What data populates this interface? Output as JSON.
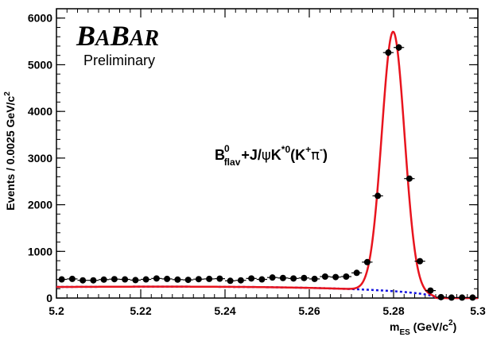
{
  "chart_data": {
    "type": "scatter",
    "logo": "BABAR",
    "status_label": "Preliminary",
    "annotation": {
      "base": "B",
      "sup1": "0",
      "sub1": "flav",
      "mid": "+J/",
      "psi": "ψ",
      "k": "K",
      "sup2": "*0",
      "open": "(K",
      "sup3": "+",
      "pi": "π",
      "sup4": "-",
      "close": ")"
    },
    "xlabel": {
      "main": "m",
      "sub": "ES",
      "unit": " (GeV/c",
      "sup": "2",
      "end": ")"
    },
    "ylabel": {
      "main": "Events / 0.0025 GeV/c",
      "sup": "2"
    },
    "xlim": [
      5.2,
      5.3
    ],
    "ylim": [
      0,
      6200
    ],
    "x_ticks": [
      {
        "v": 5.2,
        "label": "5.2"
      },
      {
        "v": 5.22,
        "label": "5.22"
      },
      {
        "v": 5.24,
        "label": "5.24"
      },
      {
        "v": 5.26,
        "label": "5.26"
      },
      {
        "v": 5.28,
        "label": "5.28"
      },
      {
        "v": 5.3,
        "label": "5.3"
      }
    ],
    "y_ticks": [
      {
        "v": 0,
        "label": "0"
      },
      {
        "v": 1000,
        "label": "1000"
      },
      {
        "v": 2000,
        "label": "2000"
      },
      {
        "v": 3000,
        "label": "3000"
      },
      {
        "v": 4000,
        "label": "4000"
      },
      {
        "v": 5000,
        "label": "5000"
      },
      {
        "v": 6000,
        "label": "6000"
      }
    ],
    "x_minor_step": 0.0025,
    "y_minor_step": 200,
    "bin_half_width": 0.00125,
    "points": [
      {
        "x": 5.20125,
        "y": 400,
        "err": 20
      },
      {
        "x": 5.20375,
        "y": 410,
        "err": 20
      },
      {
        "x": 5.20625,
        "y": 380,
        "err": 20
      },
      {
        "x": 5.20875,
        "y": 380,
        "err": 20
      },
      {
        "x": 5.21125,
        "y": 395,
        "err": 20
      },
      {
        "x": 5.21375,
        "y": 405,
        "err": 20
      },
      {
        "x": 5.21625,
        "y": 400,
        "err": 20
      },
      {
        "x": 5.21875,
        "y": 385,
        "err": 20
      },
      {
        "x": 5.22125,
        "y": 400,
        "err": 20
      },
      {
        "x": 5.22375,
        "y": 420,
        "err": 20
      },
      {
        "x": 5.22625,
        "y": 410,
        "err": 20
      },
      {
        "x": 5.22875,
        "y": 395,
        "err": 20
      },
      {
        "x": 5.23125,
        "y": 390,
        "err": 20
      },
      {
        "x": 5.23375,
        "y": 405,
        "err": 20
      },
      {
        "x": 5.23625,
        "y": 410,
        "err": 20
      },
      {
        "x": 5.23875,
        "y": 415,
        "err": 20
      },
      {
        "x": 5.24125,
        "y": 370,
        "err": 20
      },
      {
        "x": 5.24375,
        "y": 380,
        "err": 20
      },
      {
        "x": 5.24625,
        "y": 420,
        "err": 20
      },
      {
        "x": 5.24875,
        "y": 400,
        "err": 20
      },
      {
        "x": 5.25125,
        "y": 440,
        "err": 20
      },
      {
        "x": 5.25375,
        "y": 430,
        "err": 20
      },
      {
        "x": 5.25625,
        "y": 420,
        "err": 20
      },
      {
        "x": 5.25875,
        "y": 430,
        "err": 20
      },
      {
        "x": 5.26125,
        "y": 410,
        "err": 20
      },
      {
        "x": 5.26375,
        "y": 460,
        "err": 20
      },
      {
        "x": 5.26625,
        "y": 450,
        "err": 20
      },
      {
        "x": 5.26875,
        "y": 460,
        "err": 20
      },
      {
        "x": 5.27125,
        "y": 540,
        "err": 25
      },
      {
        "x": 5.27375,
        "y": 770,
        "err": 30
      },
      {
        "x": 5.27625,
        "y": 2190,
        "err": 50
      },
      {
        "x": 5.27875,
        "y": 5260,
        "err": 75
      },
      {
        "x": 5.28125,
        "y": 5370,
        "err": 75
      },
      {
        "x": 5.28375,
        "y": 2560,
        "err": 50
      },
      {
        "x": 5.28625,
        "y": 790,
        "err": 30
      },
      {
        "x": 5.28875,
        "y": 160,
        "err": 15
      },
      {
        "x": 5.29125,
        "y": 20,
        "err": 5
      },
      {
        "x": 5.29375,
        "y": 10,
        "err": 5
      },
      {
        "x": 5.29625,
        "y": 10,
        "err": 5
      },
      {
        "x": 5.29875,
        "y": 10,
        "err": 5
      }
    ],
    "fit": {
      "total_color": "#e8141e",
      "background_color": "#1414e0",
      "m0": 5.29,
      "arg_c": -20,
      "arg_norm": 488,
      "peak_mean": 5.2799,
      "peak_sigma": 0.0027,
      "peak_amp": 5560
    },
    "grid": false,
    "legend": "none"
  }
}
